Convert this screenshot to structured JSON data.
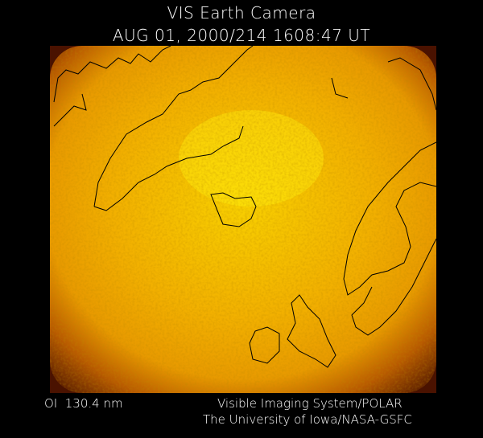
{
  "header": {
    "title": "VIS Earth Camera",
    "timestamp": "AUG 01, 2000/214 1608:47 UT"
  },
  "footer": {
    "wavelength": "OI  130.4 nm",
    "instrument": "Visible Imaging System/POLAR",
    "institution": "The University of Iowa/NASA-GSFC"
  }
}
